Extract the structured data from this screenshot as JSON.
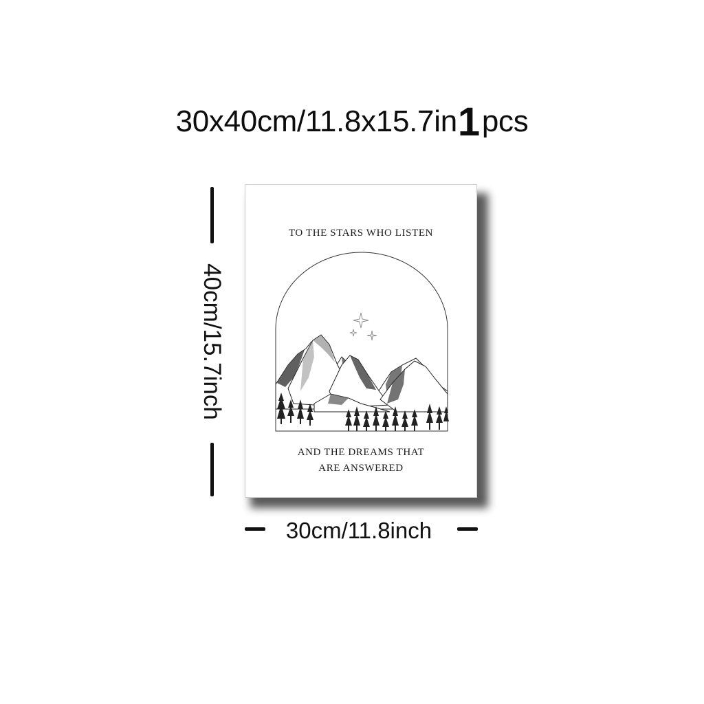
{
  "headline": {
    "size_text": "30x40cm/11.8x15.7in",
    "quantity": "1",
    "quantity_unit": "pcs"
  },
  "poster": {
    "top_text": "TO THE STARS WHO LISTEN",
    "bottom_text_line1": "AND THE DREAMS THAT",
    "bottom_text_line2": "ARE ANSWERED",
    "artwork_icon": "mountain-arch-icon",
    "star_icon": "sparkle-stars-icon"
  },
  "dimensions": {
    "height_label": "40cm/15.7inch",
    "width_label": "30cm/11.8inch"
  },
  "colors": {
    "background": "#ffffff",
    "ink": "#111111"
  }
}
